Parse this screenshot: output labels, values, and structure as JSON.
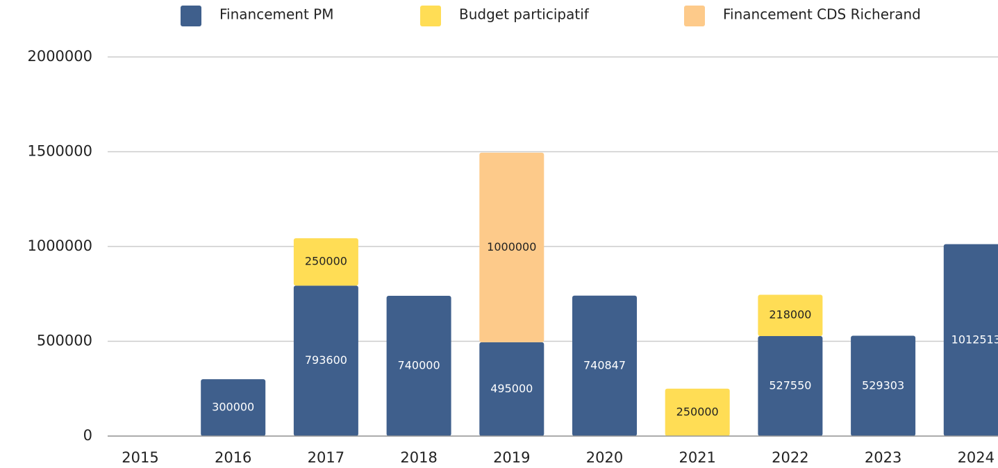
{
  "chart_data": {
    "type": "bar",
    "stacked": true,
    "categories": [
      "2015",
      "2016",
      "2017",
      "2018",
      "2019",
      "2020",
      "2021",
      "2022",
      "2023",
      "2024"
    ],
    "series": [
      {
        "name": "Financement PM",
        "color": "#3f5f8c",
        "label_color": "#ffffff",
        "values": [
          null,
          300000,
          793600,
          740000,
          495000,
          740847,
          null,
          527550,
          529303,
          1012513
        ]
      },
      {
        "name": "Budget participatif",
        "color": "#ffdd55",
        "label_color": "#222222",
        "values": [
          null,
          null,
          250000,
          null,
          null,
          null,
          250000,
          218000,
          null,
          null
        ]
      },
      {
        "name": "Financement CDS Richerand",
        "color": "#fdca8a",
        "label_color": "#222222",
        "values": [
          null,
          null,
          null,
          null,
          1000000,
          null,
          null,
          null,
          null,
          null
        ]
      }
    ],
    "ylim": [
      0,
      2000000
    ],
    "yticks": [
      0,
      500000,
      1000000,
      1500000,
      2000000
    ],
    "grid": true,
    "legend": "top"
  }
}
